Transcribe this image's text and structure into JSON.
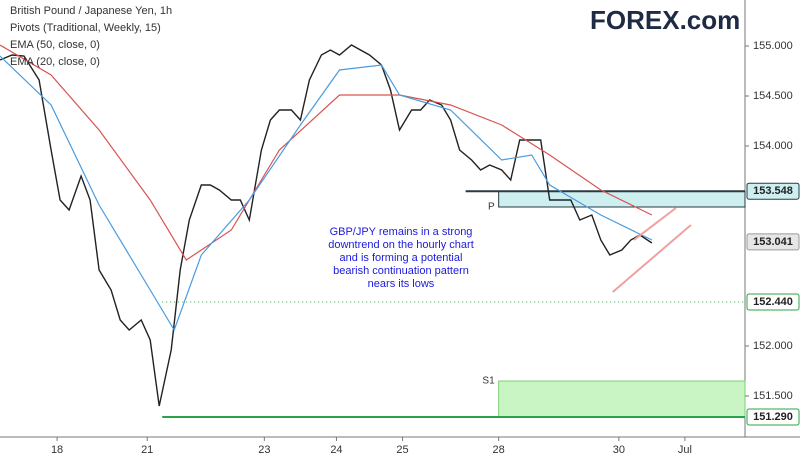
{
  "chart_data": {
    "type": "line",
    "logo": "FOREX.com",
    "pivots_label": "Pivots (Traditional, Weekly, 15)",
    "xlim": [
      0,
      248
    ],
    "xticks": [
      {
        "value": 19,
        "label": "18"
      },
      {
        "value": 49,
        "label": "21"
      },
      {
        "value": 88,
        "label": "23"
      },
      {
        "value": 112,
        "label": "24"
      },
      {
        "value": 134,
        "label": "25"
      },
      {
        "value": 166,
        "label": "28"
      },
      {
        "value": 206,
        "label": "30"
      },
      {
        "value": 228,
        "label": "Jul"
      }
    ],
    "ylim": [
      151.09,
      155.46
    ],
    "yticks": [
      {
        "value": 151.5,
        "label": "151.500"
      },
      {
        "value": 152,
        "label": "152.000"
      },
      {
        "value": 154,
        "label": "154.000"
      },
      {
        "value": 154.5,
        "label": "154.500"
      },
      {
        "value": 155,
        "label": "155.000"
      }
    ],
    "grid": false,
    "series": [
      {
        "name": "British Pound / Japanese Yen, 1h",
        "color": "#222222",
        "x": [
          0,
          4,
          8,
          13,
          17,
          20,
          23,
          27,
          30,
          33,
          37,
          40,
          43,
          47,
          50,
          53,
          57,
          60,
          63,
          67,
          70,
          73,
          77,
          80,
          83,
          87,
          90,
          93,
          97,
          100,
          103,
          107,
          110,
          113,
          117,
          120,
          123,
          127,
          130,
          133,
          137,
          140,
          143,
          147,
          150,
          153,
          157,
          160,
          163,
          167,
          170,
          173,
          177,
          180,
          183,
          187,
          190,
          193,
          197,
          200,
          203,
          207,
          210,
          213,
          217
        ],
        "values": [
          154.86,
          154.91,
          154.9,
          154.66,
          153.96,
          153.46,
          153.36,
          153.7,
          153.46,
          152.76,
          152.56,
          152.26,
          152.16,
          152.26,
          152.06,
          151.4,
          151.96,
          152.76,
          153.26,
          153.61,
          153.61,
          153.56,
          153.46,
          153.46,
          153.26,
          153.96,
          154.26,
          154.36,
          154.36,
          154.26,
          154.66,
          154.91,
          154.96,
          154.91,
          155.01,
          154.96,
          154.91,
          154.81,
          154.56,
          154.16,
          154.36,
          154.36,
          154.46,
          154.41,
          154.26,
          153.96,
          153.86,
          153.76,
          153.81,
          153.76,
          153.66,
          154.06,
          154.06,
          154.06,
          153.46,
          153.46,
          153.46,
          153.26,
          153.31,
          153.06,
          152.91,
          152.96,
          153.06,
          153.11,
          153.03
        ]
      },
      {
        "name": "EMA (50, close, 0)",
        "color": "#d9534f",
        "x": [
          0,
          17,
          33,
          50,
          62,
          77,
          93,
          113,
          133,
          150,
          167,
          183,
          200,
          217
        ],
        "values": [
          155.01,
          154.71,
          154.16,
          153.46,
          152.86,
          153.16,
          153.96,
          154.51,
          154.51,
          154.41,
          154.21,
          153.91,
          153.56,
          153.31
        ]
      },
      {
        "name": "EMA (20, close, 0)",
        "color": "#4a9be0",
        "x": [
          0,
          17,
          33,
          50,
          58,
          67,
          83,
          100,
          113,
          127,
          133,
          150,
          167,
          177,
          183,
          200,
          217
        ],
        "values": [
          154.9,
          154.41,
          153.41,
          152.56,
          152.16,
          152.91,
          153.46,
          154.21,
          154.76,
          154.81,
          154.51,
          154.36,
          153.86,
          153.91,
          153.61,
          153.31,
          153.06
        ]
      }
    ],
    "zones": [
      {
        "label": "P",
        "x_start": 166,
        "range": [
          153.39,
          153.548
        ],
        "color": "#cdeff0",
        "edge": "#2b3a42"
      },
      {
        "label": "S1",
        "x_start": 166,
        "range": [
          151.29,
          151.65
        ],
        "color": "#c9f5c4",
        "edge": "#7ccf74"
      }
    ],
    "price_labels": [
      {
        "value": 153.548,
        "label": "153.548",
        "color": "#cdeff0",
        "line": "solid",
        "line_color": "#2b3a42",
        "x_start": 155
      },
      {
        "value": 153.041,
        "label": "153.041",
        "color": "#e6e6e6",
        "line": null
      },
      {
        "value": 152.44,
        "label": "152.440",
        "color": "#ffffff",
        "line": "dotted",
        "line_color": "#2aa44a",
        "x_start": 54
      },
      {
        "value": 151.29,
        "label": "151.290",
        "color": "#ffffff",
        "line": "solid",
        "line_color": "#2aa44a",
        "x_start": 54
      }
    ],
    "trendlines": [
      {
        "color": "#f0a0a0",
        "x": [
          204,
          230
        ],
        "values": [
          152.54,
          153.21
        ]
      },
      {
        "color": "#f0a0a0",
        "x": [
          211,
          225
        ],
        "values": [
          153.06,
          153.38
        ]
      }
    ],
    "annotation": {
      "color": "#1a1adb",
      "lines": [
        "GBP/JPY remains in a strong",
        "downtrend on the hourly chart",
        "and is forming a potential",
        "bearish continuation pattern",
        "nears its lows"
      ]
    }
  }
}
